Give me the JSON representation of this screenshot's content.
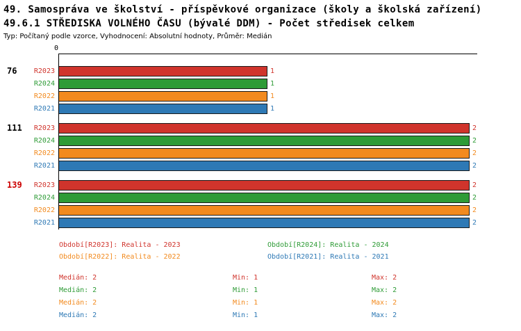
{
  "header": {
    "title_line1": "49. Samospráva ve školství - příspěvkové organizace (školy a školská zařízení)",
    "title_line2": "49.6.1 STŘEDISKA VOLNÉHO ČASU (bývalé DDM) - Počet středisek celkem",
    "meta": "Typ: Počítaný podle vzorce, Vyhodnocení: Absolutní hodnoty, Průměr: Medián"
  },
  "chart_data": {
    "type": "bar",
    "orientation": "horizontal",
    "title": "49.6.1 STŘEDISKA VOLNÉHO ČASU (bývalé DDM) - Počet středisek celkem",
    "x_axis": {
      "origin_label": "0",
      "min": 0,
      "max": 2
    },
    "grid": false,
    "legend_position": "bottom",
    "series_order": [
      "R2023",
      "R2024",
      "R2022",
      "R2021"
    ],
    "colors": {
      "R2023": "#d0342c",
      "R2024": "#2e9b36",
      "R2022": "#f28a1e",
      "R2021": "#2e79b5"
    },
    "groups": [
      {
        "label": "76",
        "label_color": "#000000",
        "bars": [
          {
            "series": "R2023",
            "value": 1
          },
          {
            "series": "R2024",
            "value": 1
          },
          {
            "series": "R2022",
            "value": 1
          },
          {
            "series": "R2021",
            "value": 1
          }
        ]
      },
      {
        "label": "111",
        "label_color": "#000000",
        "bars": [
          {
            "series": "R2023",
            "value": 2
          },
          {
            "series": "R2024",
            "value": 2
          },
          {
            "series": "R2022",
            "value": 2
          },
          {
            "series": "R2021",
            "value": 2
          }
        ]
      },
      {
        "label": "139",
        "label_color": "#cc0000",
        "bars": [
          {
            "series": "R2023",
            "value": 2
          },
          {
            "series": "R2024",
            "value": 2
          },
          {
            "series": "R2022",
            "value": 2
          },
          {
            "series": "R2021",
            "value": 2
          }
        ]
      }
    ]
  },
  "legend": [
    {
      "series": "R2023",
      "label": "Období[R2023]:",
      "value": "Realita - 2023",
      "color": "#d0342c"
    },
    {
      "series": "R2024",
      "label": "Období[R2024]:",
      "value": "Realita - 2024",
      "color": "#2e9b36"
    },
    {
      "series": "R2022",
      "label": "Období[R2022]:",
      "value": "Realita - 2022",
      "color": "#f28a1e"
    },
    {
      "series": "R2021",
      "label": "Období[R2021]:",
      "value": "Realita - 2021",
      "color": "#2e79b5"
    }
  ],
  "stats_labels": {
    "median": "Medián:",
    "min": "Min:",
    "max": "Max:"
  },
  "stats": [
    {
      "series": "R2023",
      "color": "#d0342c",
      "median": 2,
      "min": 1,
      "max": 2
    },
    {
      "series": "R2024",
      "color": "#2e9b36",
      "median": 2,
      "min": 1,
      "max": 2
    },
    {
      "series": "R2022",
      "color": "#f28a1e",
      "median": 2,
      "min": 1,
      "max": 2
    },
    {
      "series": "R2021",
      "color": "#2e79b5",
      "median": 2,
      "min": 1,
      "max": 2
    }
  ]
}
